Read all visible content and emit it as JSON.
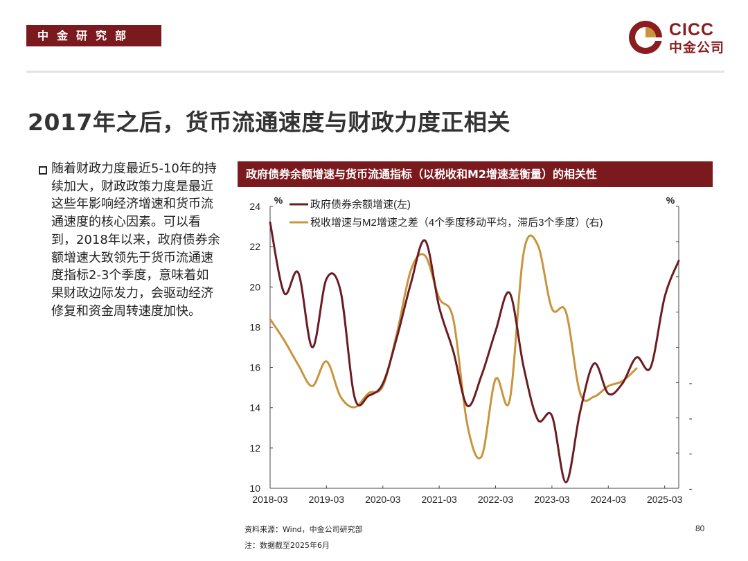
{
  "header": {
    "department": "中金研究部"
  },
  "logo": {
    "en": "CICC",
    "cn": "中金公司"
  },
  "slide": {
    "title": "2017年之后，货币流通速度与财政力度正相关",
    "body": "随着财政力度最近5-10年的持续加大，财政政策力度是最近这些年影响经济增速和货币流通速度的核心因素。可以看到，2018年以来，政府债券余额增速大致领先于货币流通速度指标2-3个季度，意味着如果财政边际发力，会驱动经济修复和资金周转速度加快。",
    "source": "资料来源：Wind，中金公司研究部",
    "note": "注：数据截至2025年6月",
    "page": "80"
  },
  "colors": {
    "brand": "#7b1a1e",
    "series1": "#6b1c22",
    "series2": "#c8943c"
  },
  "chart_data": {
    "type": "line",
    "title": "政府债券余额增速与货币流通指标（以税收和M2增速差衡量）的相关性",
    "left_unit": "%",
    "right_unit": "%",
    "ylim_left": [
      10,
      24
    ],
    "ylim_right": [
      -25,
      15
    ],
    "yticks_left": [
      "24",
      "22",
      "20",
      "18",
      "16",
      "14",
      "12",
      "10"
    ],
    "yticks_right": [
      "15",
      "10",
      "5",
      "0",
      "-5",
      "-10",
      "-15",
      "-20",
      "-25"
    ],
    "xlim": [
      "2018-03",
      "2025-06"
    ],
    "xticks": [
      "2018-03",
      "2019-03",
      "2020-03",
      "2021-03",
      "2022-03",
      "2023-03",
      "2024-03",
      "2025-03"
    ],
    "legend_position": "top",
    "series": [
      {
        "name": "政府债券余额增速(左)",
        "axis": "left",
        "points": [
          [
            "2018-03",
            23.2
          ],
          [
            "2018-06",
            19.7
          ],
          [
            "2018-09",
            20.7
          ],
          [
            "2018-12",
            17.0
          ],
          [
            "2019-03",
            20.4
          ],
          [
            "2019-06",
            19.8
          ],
          [
            "2019-09",
            14.5
          ],
          [
            "2019-12",
            14.6
          ],
          [
            "2020-03",
            15.2
          ],
          [
            "2020-06",
            17.5
          ],
          [
            "2020-09",
            20.2
          ],
          [
            "2020-12",
            22.3
          ],
          [
            "2021-03",
            19.0
          ],
          [
            "2021-06",
            16.8
          ],
          [
            "2021-09",
            14.1
          ],
          [
            "2021-12",
            15.6
          ],
          [
            "2022-03",
            17.8
          ],
          [
            "2022-06",
            19.7
          ],
          [
            "2022-09",
            16.0
          ],
          [
            "2022-12",
            13.4
          ],
          [
            "2023-03",
            13.6
          ],
          [
            "2023-06",
            10.3
          ],
          [
            "2023-09",
            13.8
          ],
          [
            "2023-12",
            16.2
          ],
          [
            "2024-03",
            14.7
          ],
          [
            "2024-06",
            15.2
          ],
          [
            "2024-09",
            16.5
          ],
          [
            "2024-12",
            16.0
          ],
          [
            "2025-03",
            19.5
          ],
          [
            "2025-06",
            21.3
          ]
        ]
      },
      {
        "name": "税收增速与M2增速之差（4个季度移动平均，滞后3个季度）(右)",
        "axis": "right",
        "points": [
          [
            "2018-03",
            -1.0
          ],
          [
            "2018-06",
            -4.0
          ],
          [
            "2018-09",
            -7.5
          ],
          [
            "2018-12",
            -10.5
          ],
          [
            "2019-03",
            -7.0
          ],
          [
            "2019-06",
            -12.0
          ],
          [
            "2019-09",
            -13.5
          ],
          [
            "2019-12",
            -11.5
          ],
          [
            "2020-03",
            -10.5
          ],
          [
            "2020-06",
            -3.0
          ],
          [
            "2020-09",
            6.0
          ],
          [
            "2020-12",
            8.0
          ],
          [
            "2021-03",
            2.0
          ],
          [
            "2021-06",
            -1.0
          ],
          [
            "2021-09",
            -16.0
          ],
          [
            "2021-12",
            -20.5
          ],
          [
            "2022-03",
            -9.5
          ],
          [
            "2022-06",
            -12.5
          ],
          [
            "2022-09",
            8.5
          ],
          [
            "2022-12",
            9.5
          ],
          [
            "2023-03",
            0.5
          ],
          [
            "2023-06",
            0.0
          ],
          [
            "2023-09",
            -11.5
          ],
          [
            "2023-12",
            -12.0
          ],
          [
            "2024-03",
            -10.5
          ],
          [
            "2024-06",
            -9.8
          ],
          [
            "2024-09",
            -8.0
          ]
        ]
      }
    ]
  }
}
